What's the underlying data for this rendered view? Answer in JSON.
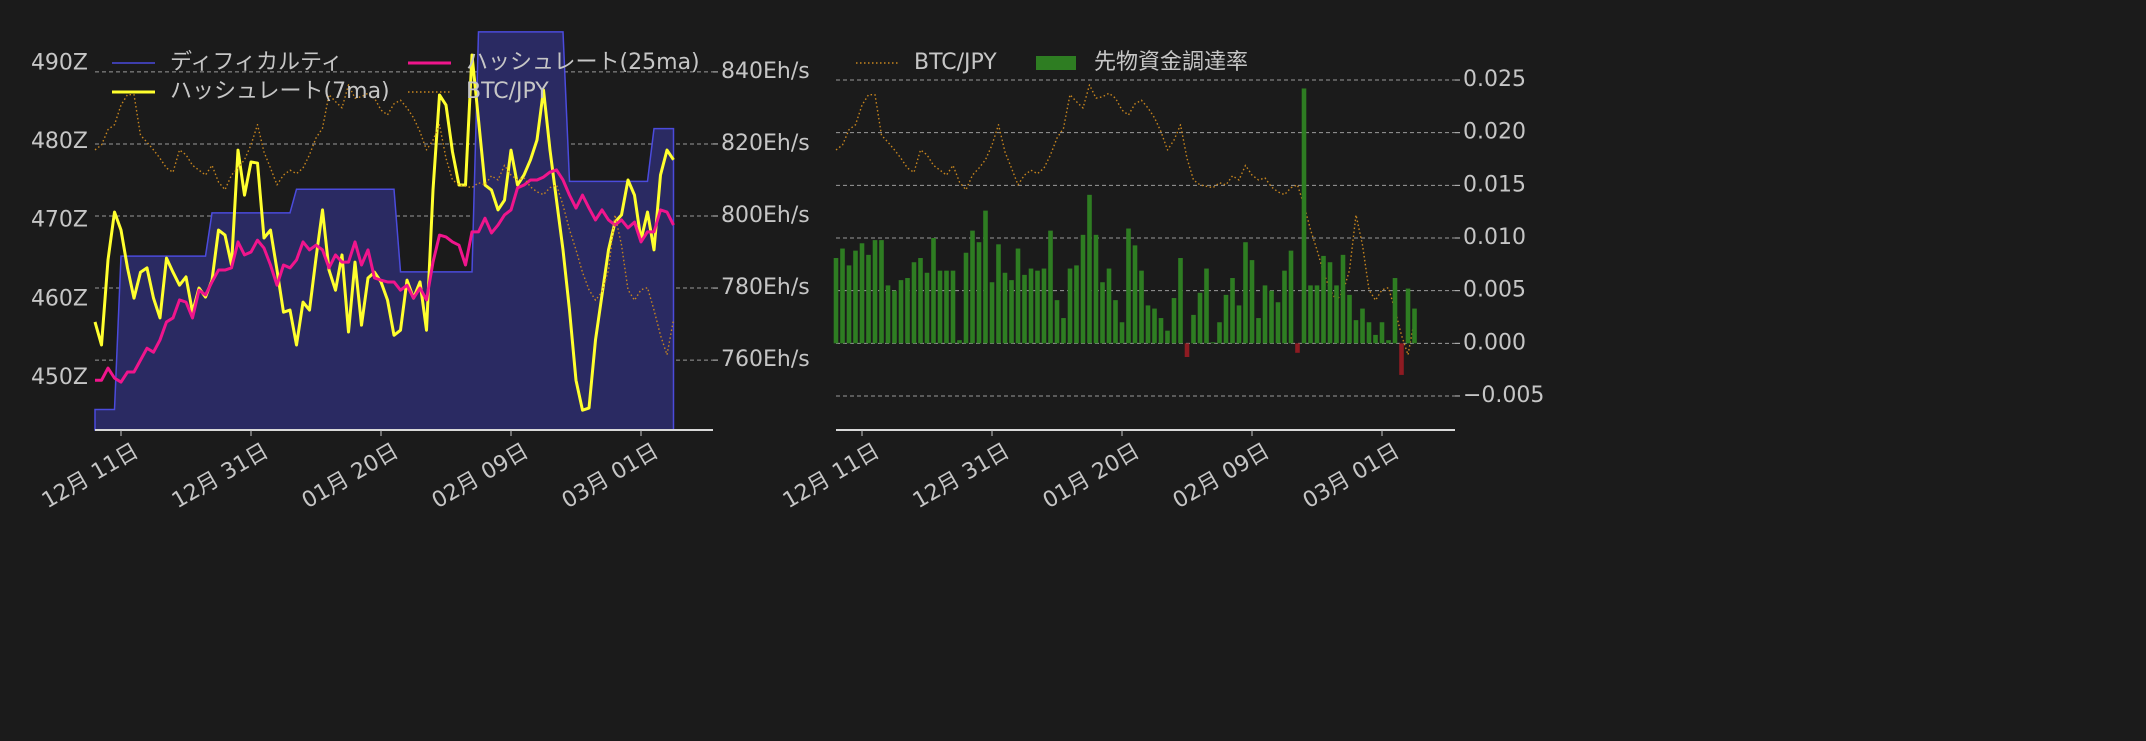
{
  "chart_data": [
    {
      "type": "line",
      "categories": [
        null,
        null,
        null,
        null,
        "12月 11日",
        null,
        null,
        null,
        null,
        null,
        null,
        null,
        null,
        null,
        null,
        null,
        null,
        null,
        null,
        null,
        null,
        null,
        null,
        null,
        "12月 31日",
        null,
        null,
        null,
        null,
        null,
        null,
        null,
        null,
        null,
        null,
        null,
        null,
        null,
        null,
        null,
        null,
        null,
        null,
        null,
        "01月 20日",
        null,
        null,
        null,
        null,
        null,
        null,
        null,
        null,
        null,
        null,
        null,
        null,
        null,
        null,
        null,
        null,
        null,
        null,
        null,
        "02月 09日",
        null,
        null,
        null,
        null,
        null,
        null,
        null,
        null,
        null,
        null,
        null,
        null,
        null,
        null,
        null,
        null,
        null,
        null,
        null,
        "03月 01日",
        null,
        null,
        null,
        null,
        null
      ],
      "ylim": [
        443.4,
        495
      ],
      "yticks": [
        {
          "value": 450,
          "label": "450Z"
        },
        {
          "value": 460,
          "label": "460Z"
        },
        {
          "value": 470,
          "label": "470Z"
        },
        {
          "value": 480,
          "label": "480Z"
        },
        {
          "value": 490,
          "label": "490Z"
        }
      ],
      "y2lim": [
        740.6,
        853.3
      ],
      "y2ticks": [
        {
          "value": 760,
          "label": "760Eh/s"
        },
        {
          "value": 780,
          "label": "780Eh/s"
        },
        {
          "value": 800,
          "label": "800Eh/s"
        },
        {
          "value": 820,
          "label": "820Eh/s"
        },
        {
          "value": 840,
          "label": "840Eh/s"
        }
      ],
      "y3lim": [
        11595000,
        17400000
      ],
      "grid": "y2",
      "series": [
        {
          "name": "ディフィカルティ",
          "type": "area",
          "color": "#4b4bdc",
          "fill": "#2a2a62",
          "axis": "y",
          "values": [
            446,
            446,
            446,
            446,
            465.5,
            465.5,
            465.5,
            465.5,
            465.5,
            465.5,
            465.5,
            465.5,
            465.5,
            465.5,
            465.5,
            465.5,
            465.5,
            465.5,
            471,
            471,
            471,
            471,
            471,
            471,
            471,
            471,
            471,
            471,
            471,
            471,
            471,
            474,
            474,
            474,
            474,
            474,
            474,
            474,
            474,
            474,
            474,
            474,
            474,
            474,
            474,
            474,
            474,
            463.5,
            463.5,
            463.5,
            463.5,
            463.5,
            463.5,
            463.5,
            463.5,
            463.5,
            463.5,
            463.5,
            463.5,
            494,
            494,
            494,
            494,
            494,
            494,
            494,
            494,
            494,
            494,
            494,
            494,
            494,
            494,
            475,
            475,
            475,
            475,
            475,
            475,
            475,
            475,
            475,
            475,
            475,
            475,
            475,
            481.7,
            481.7,
            481.7,
            481.7
          ]
        },
        {
          "name": "ハッシュレート(7ma)",
          "type": "line",
          "color": "#ffff2e",
          "axis": "y2",
          "values": [
            770.6,
            764.2,
            787.8,
            801.1,
            796.1,
            785.6,
            777.2,
            784.4,
            785.6,
            777.2,
            771.7,
            788.3,
            784.4,
            780.8,
            783.1,
            773.3,
            780,
            777.5,
            782.2,
            796.1,
            794.7,
            786.4,
            818.3,
            805.8,
            815,
            814.7,
            793.9,
            796.1,
            785,
            773.3,
            773.9,
            764.2,
            776.1,
            773.9,
            788.3,
            801.7,
            785,
            779.4,
            789.2,
            767.8,
            787.2,
            769.7,
            782.8,
            784.4,
            781.7,
            776.7,
            766.9,
            768.3,
            782.2,
            777.2,
            781.7,
            768.3,
            807.2,
            833.6,
            830.8,
            817.8,
            808.6,
            808.6,
            844.7,
            826.7,
            808.6,
            807.2,
            801.7,
            804.4,
            818.3,
            808.6,
            811.4,
            815.6,
            821.1,
            835,
            818.3,
            804.4,
            790.6,
            773.9,
            754.4,
            746.1,
            746.7,
            765.6,
            778.1,
            790.6,
            798.3,
            800.3,
            810,
            805.8,
            793.3,
            801.1,
            790.6,
            811.4,
            818.3,
            815.6
          ]
        },
        {
          "name": "ハッシュレート(25ma)",
          "type": "line",
          "color": "#f0158c",
          "axis": "y2",
          "values": [
            754.4,
            754.4,
            757.8,
            755,
            753.9,
            756.7,
            756.7,
            760,
            763.3,
            762.2,
            765.6,
            770.6,
            771.7,
            776.7,
            776.1,
            771.7,
            779.4,
            778.1,
            781.7,
            785,
            785,
            785.6,
            792.8,
            789.2,
            790,
            793.3,
            791.1,
            786.4,
            780.8,
            786.4,
            785.6,
            787.8,
            792.8,
            790.6,
            791.9,
            790.6,
            785.6,
            789.2,
            787.2,
            787.2,
            792.8,
            786.4,
            790.6,
            782.8,
            782.2,
            781.7,
            781.7,
            779.4,
            780.8,
            777.2,
            780,
            776.7,
            787.2,
            794.7,
            794.2,
            792.8,
            791.9,
            786.4,
            795.6,
            795.6,
            799.4,
            795.3,
            797.5,
            800.3,
            801.7,
            807.8,
            808.6,
            810,
            810,
            810.8,
            812.2,
            812.8,
            810,
            805.8,
            802.2,
            805.8,
            802.2,
            798.9,
            801.7,
            798.9,
            797.5,
            798.9,
            796.7,
            798.3,
            792.8,
            795.6,
            795.6,
            801.7,
            801.1,
            797.5
          ]
        },
        {
          "name": "BTC/JPY",
          "type": "line",
          "style": "dotted",
          "color": "#c8861e",
          "axis": "y3",
          "values": [
            15600000,
            15670000,
            15890000,
            15960000,
            16240000,
            16390000,
            16390000,
            15810000,
            15710000,
            15600000,
            15480000,
            15340000,
            15280000,
            15600000,
            15530000,
            15380000,
            15310000,
            15240000,
            15380000,
            15140000,
            15030000,
            15240000,
            15340000,
            15460000,
            15670000,
            15960000,
            15570000,
            15340000,
            15100000,
            15240000,
            15310000,
            15260000,
            15340000,
            15530000,
            15770000,
            15910000,
            16390000,
            16290000,
            16200000,
            16530000,
            16340000,
            16360000,
            16410000,
            16340000,
            16170000,
            16100000,
            16260000,
            16310000,
            16200000,
            16060000,
            15860000,
            15600000,
            15740000,
            15960000,
            15480000,
            15170000,
            15100000,
            15080000,
            15060000,
            15130000,
            15100000,
            15230000,
            15170000,
            15380000,
            15240000,
            15170000,
            15200000,
            15070000,
            15000000,
            14960000,
            15060000,
            15100000,
            14810000,
            14460000,
            14170000,
            13850000,
            13600000,
            13450000,
            13570000,
            13880000,
            14670000,
            14240000,
            13600000,
            13450000,
            13600000,
            13630000,
            13310000,
            12950000,
            12670000,
            13170000
          ]
        }
      ]
    },
    {
      "type": "bar",
      "categories": [
        null,
        null,
        null,
        null,
        "12月 11日",
        null,
        null,
        null,
        null,
        null,
        null,
        null,
        null,
        null,
        null,
        null,
        null,
        null,
        null,
        null,
        null,
        null,
        null,
        null,
        "12月 31日",
        null,
        null,
        null,
        null,
        null,
        null,
        null,
        null,
        null,
        null,
        null,
        null,
        null,
        null,
        null,
        null,
        null,
        null,
        null,
        "01月 20日",
        null,
        null,
        null,
        null,
        null,
        null,
        null,
        null,
        null,
        null,
        null,
        null,
        null,
        null,
        null,
        null,
        null,
        null,
        null,
        "02月 09日",
        null,
        null,
        null,
        null,
        null,
        null,
        null,
        null,
        null,
        null,
        null,
        null,
        null,
        null,
        null,
        null,
        null,
        null,
        null,
        "03月 01日",
        null,
        null,
        null,
        null,
        null
      ],
      "ylim": [
        -0.00823,
        0.02975
      ],
      "yticks": [
        {
          "value": -0.005,
          "label": "−0.005"
        },
        {
          "value": 0,
          "label": "0.000"
        },
        0.005,
        {
          "value": 0.01,
          "label": "0.010"
        },
        0.015,
        {
          "value": 0.02,
          "label": "0.020"
        },
        0.025
      ],
      "yaxis_position": "right",
      "y3lim": [
        11595000,
        17315000
      ],
      "grid": "y",
      "series": [
        {
          "name": "BTC/JPY",
          "type": "line",
          "style": "dotted",
          "color": "#c8861e",
          "axis": "y3",
          "values": [
            15600000,
            15670000,
            15890000,
            15960000,
            16240000,
            16390000,
            16390000,
            15810000,
            15710000,
            15600000,
            15480000,
            15340000,
            15280000,
            15600000,
            15530000,
            15380000,
            15310000,
            15240000,
            15380000,
            15140000,
            15030000,
            15240000,
            15340000,
            15460000,
            15670000,
            15960000,
            15570000,
            15340000,
            15100000,
            15240000,
            15310000,
            15260000,
            15340000,
            15530000,
            15770000,
            15910000,
            16390000,
            16290000,
            16200000,
            16530000,
            16340000,
            16360000,
            16410000,
            16340000,
            16170000,
            16100000,
            16260000,
            16310000,
            16200000,
            16060000,
            15860000,
            15600000,
            15740000,
            15960000,
            15480000,
            15170000,
            15100000,
            15080000,
            15060000,
            15130000,
            15100000,
            15230000,
            15170000,
            15380000,
            15240000,
            15170000,
            15200000,
            15070000,
            15000000,
            14960000,
            15060000,
            15100000,
            14810000,
            14460000,
            14170000,
            13850000,
            13600000,
            13450000,
            13570000,
            13880000,
            14670000,
            14240000,
            13600000,
            13450000,
            13600000,
            13630000,
            13310000,
            12950000,
            12670000,
            13170000
          ]
        },
        {
          "name": "先物資金調達率",
          "type": "bar",
          "color": "#2e7d22",
          "negative_color": "#8e1b22",
          "axis": "y",
          "values": [
            0.0081,
            0.009,
            0.0074,
            0.0088,
            0.0095,
            0.0084,
            0.0098,
            0.0098,
            0.0055,
            0.005,
            0.006,
            0.0062,
            0.0077,
            0.0081,
            0.0067,
            0.01,
            0.0069,
            0.0069,
            0.0069,
            0.0003,
            0.0086,
            0.0107,
            0.0096,
            0.0126,
            0.0058,
            0.0094,
            0.0067,
            0.006,
            0.009,
            0.0065,
            0.0071,
            0.0069,
            0.0071,
            0.0107,
            0.0041,
            0.0024,
            0.0071,
            0.0074,
            0.0103,
            0.0141,
            0.0103,
            0.0058,
            0.0071,
            0.0041,
            0.002,
            0.0109,
            0.0093,
            0.0069,
            0.0036,
            0.0033,
            0.0024,
            0.0012,
            0.0043,
            0.0081,
            -0.0013,
            0.0027,
            0.0048,
            0.0071,
            0.0001,
            0.002,
            0.0046,
            0.0062,
            0.0036,
            0.0096,
            0.0079,
            0.0024,
            0.0055,
            0.005,
            0.0039,
            0.0069,
            0.0088,
            -0.0009,
            0.0242,
            0.0055,
            0.0055,
            0.0083,
            0.0077,
            0.0055,
            0.0084,
            0.0046,
            0.0022,
            0.0033,
            0.002,
            0.0008,
            0.002,
            0.0003,
            0.0062,
            -0.003,
            0.0052,
            0.0033
          ]
        }
      ]
    }
  ]
}
